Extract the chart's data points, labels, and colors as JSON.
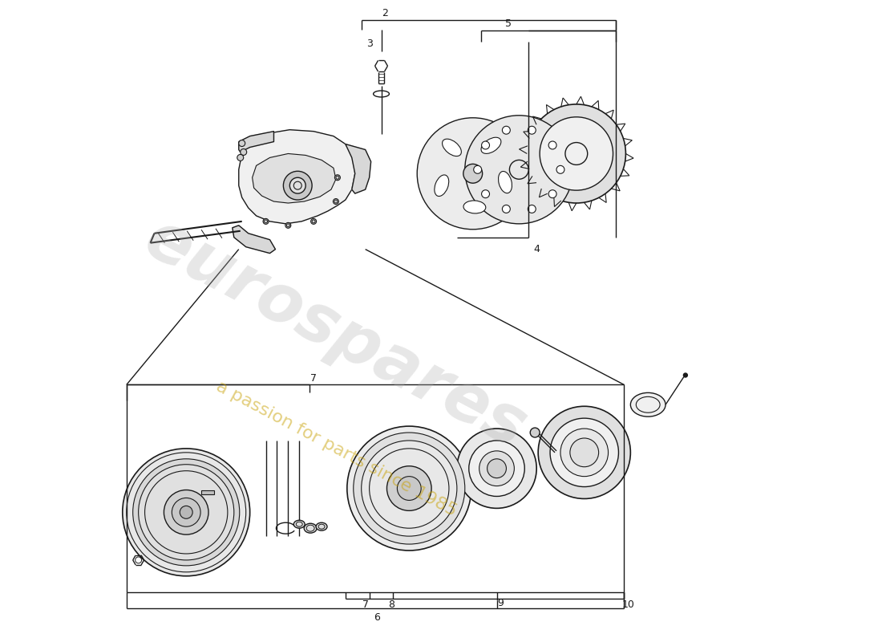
{
  "bg_color": "#ffffff",
  "line_color": "#1a1a1a",
  "watermark_text1": "eurospares",
  "watermark_text2": "a passion for parts since 1985",
  "figsize": [
    11.0,
    8.0
  ],
  "dpi": 100,
  "label_fs": 9,
  "wm_color1": "#b0b0b0",
  "wm_color2": "#c8a000",
  "wm_alpha1": 0.3,
  "wm_alpha2": 0.5,
  "wm_fs1": 60,
  "wm_fs2": 16,
  "wm_rot": -28
}
